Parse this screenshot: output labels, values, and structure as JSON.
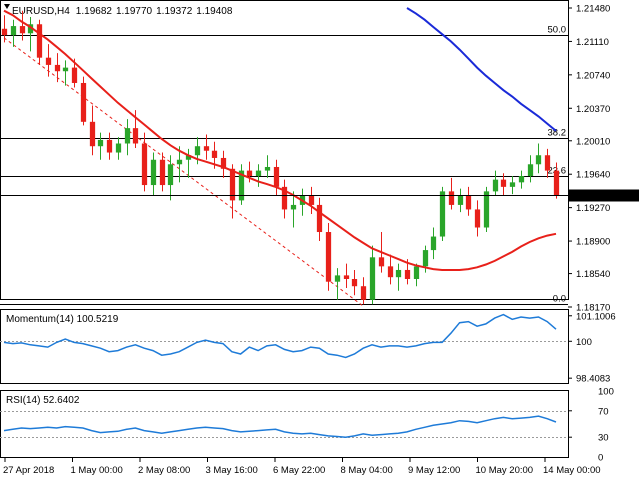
{
  "chart_data": [
    {
      "type": "candlestick",
      "symbol": "EURUSD,H4",
      "ohlc_header": [
        "1.19682",
        "1.19770",
        "1.19372",
        "1.19408"
      ],
      "current_price_label": "1.19408",
      "current_price": 1.19408,
      "ylim": [
        1.1817,
        1.2148
      ],
      "y_ticks": [
        "1.21480",
        "1.21110",
        "1.20740",
        "1.20370",
        "1.20010",
        "1.19640",
        "1.19270",
        "1.18900",
        "1.18540",
        "1.18170"
      ],
      "x_ticks": [
        "27 Apr 2018",
        "1 May 00:00",
        "2 May 08:00",
        "3 May 16:00",
        "6 May 22:00",
        "8 May 04:00",
        "9 May 12:00",
        "10 May 20:00",
        "14 May 00:00"
      ],
      "fibonacci": [
        {
          "label": "50.0",
          "price": 1.2118
        },
        {
          "label": "38.2",
          "price": 1.2004
        },
        {
          "label": "23.6",
          "price": 1.1962
        },
        {
          "label": "0.0",
          "price": 1.182
        }
      ],
      "candles": [
        [
          1.2125,
          1.214,
          1.211,
          1.2118
        ],
        [
          1.2118,
          1.2135,
          1.2105,
          1.2128
        ],
        [
          1.2128,
          1.2145,
          1.2112,
          1.212
        ],
        [
          1.212,
          1.2138,
          1.21,
          1.213
        ],
        [
          1.213,
          1.2135,
          1.2085,
          1.2093
        ],
        [
          1.2093,
          1.2108,
          1.2072,
          1.2085
        ],
        [
          1.2085,
          1.2098,
          1.2066,
          1.2078
        ],
        [
          1.2078,
          1.209,
          1.2062,
          1.2082
        ],
        [
          1.2082,
          1.2092,
          1.206,
          1.2065
        ],
        [
          1.2065,
          1.2072,
          1.2018,
          1.2022
        ],
        [
          1.2022,
          1.204,
          1.1985,
          1.1995
        ],
        [
          1.1995,
          1.201,
          1.198,
          1.2002
        ],
        [
          1.2002,
          1.201,
          1.198,
          1.1988
        ],
        [
          1.1988,
          1.2005,
          1.198,
          1.1998
        ],
        [
          1.1998,
          1.2025,
          1.1985,
          1.2015
        ],
        [
          1.2015,
          1.2035,
          1.1993,
          1.1998
        ],
        [
          1.1998,
          1.201,
          1.1945,
          1.1952
        ],
        [
          1.1952,
          1.1988,
          1.194,
          1.198
        ],
        [
          1.198,
          1.1988,
          1.1945,
          1.1952
        ],
        [
          1.1952,
          1.1985,
          1.1935,
          1.1975
        ],
        [
          1.1975,
          1.1995,
          1.1955,
          1.198
        ],
        [
          1.198,
          1.1992,
          1.196,
          1.1985
        ],
        [
          1.1985,
          1.2005,
          1.1975,
          1.1995
        ],
        [
          1.1995,
          1.2008,
          1.198,
          1.199
        ],
        [
          1.199,
          1.2,
          1.197,
          1.1982
        ],
        [
          1.1982,
          1.199,
          1.196,
          1.197
        ],
        [
          1.197,
          1.1975,
          1.1915,
          1.1935
        ],
        [
          1.1935,
          1.1975,
          1.193,
          1.1968
        ],
        [
          1.1968,
          1.1978,
          1.1955,
          1.1962
        ],
        [
          1.1962,
          1.1975,
          1.195,
          1.1968
        ],
        [
          1.1968,
          1.1985,
          1.196,
          1.1972
        ],
        [
          1.1972,
          1.198,
          1.194,
          1.195
        ],
        [
          1.195,
          1.1958,
          1.1915,
          1.1925
        ],
        [
          1.1925,
          1.1945,
          1.1905,
          1.193
        ],
        [
          1.193,
          1.1948,
          1.1918,
          1.194
        ],
        [
          1.194,
          1.195,
          1.192,
          1.193
        ],
        [
          1.193,
          1.1938,
          1.189,
          1.19
        ],
        [
          1.19,
          1.191,
          1.1835,
          1.1845
        ],
        [
          1.1845,
          1.186,
          1.1825,
          1.1852
        ],
        [
          1.1852,
          1.1865,
          1.1838,
          1.1848
        ],
        [
          1.1848,
          1.1858,
          1.183,
          1.184
        ],
        [
          1.184,
          1.185,
          1.182,
          1.1825
        ],
        [
          1.1825,
          1.1885,
          1.182,
          1.1872
        ],
        [
          1.1872,
          1.19,
          1.1855,
          1.1862
        ],
        [
          1.1862,
          1.1875,
          1.1842,
          1.185
        ],
        [
          1.185,
          1.1865,
          1.1835,
          1.1858
        ],
        [
          1.1858,
          1.187,
          1.1842,
          1.1848
        ],
        [
          1.1848,
          1.1865,
          1.184,
          1.1862
        ],
        [
          1.1862,
          1.1885,
          1.1855,
          1.188
        ],
        [
          1.188,
          1.1905,
          1.187,
          1.1895
        ],
        [
          1.1895,
          1.195,
          1.189,
          1.1945
        ],
        [
          1.1945,
          1.196,
          1.1925,
          1.193
        ],
        [
          1.193,
          1.1948,
          1.1922,
          1.194
        ],
        [
          1.194,
          1.195,
          1.1918,
          1.1925
        ],
        [
          1.1925,
          1.1935,
          1.1895,
          1.1905
        ],
        [
          1.1905,
          1.195,
          1.19,
          1.1945
        ],
        [
          1.1945,
          1.1968,
          1.194,
          1.1958
        ],
        [
          1.1958,
          1.1965,
          1.194,
          1.195
        ],
        [
          1.195,
          1.1962,
          1.1942,
          1.1955
        ],
        [
          1.1955,
          1.1968,
          1.1948,
          1.1962
        ],
        [
          1.1962,
          1.1985,
          1.1955,
          1.1975
        ],
        [
          1.1975,
          1.1998,
          1.1965,
          1.1985
        ],
        [
          1.1985,
          1.1992,
          1.196,
          1.1968
        ],
        [
          1.1968,
          1.1977,
          1.1937,
          1.1941
        ]
      ],
      "series": [
        {
          "name": "",
          "color": "#e8201a",
          "values": [
            1.2145,
            1.214,
            1.2133,
            1.2127,
            1.212,
            1.2113,
            1.2105,
            1.2097,
            1.2088,
            1.2079,
            1.207,
            1.2061,
            1.2052,
            1.2043,
            1.2035,
            1.2027,
            1.2019,
            1.2011,
            1.2003,
            1.1996,
            1.199,
            1.1985,
            1.1981,
            1.1978,
            1.1975,
            1.1972,
            1.1968,
            1.1964,
            1.196,
            1.1956,
            1.1953,
            1.195,
            1.1946,
            1.1941,
            1.1935,
            1.1929,
            1.1922,
            1.1915,
            1.1908,
            1.1901,
            1.1894,
            1.1888,
            1.1882,
            1.1878,
            1.1874,
            1.187,
            1.1866,
            1.1863,
            1.1861,
            1.1859,
            1.1858,
            1.1858,
            1.1858,
            1.1859,
            1.1861,
            1.1864,
            1.1868,
            1.1873,
            1.1878,
            1.1884,
            1.1889,
            1.1893,
            1.1896,
            1.1898
          ]
        },
        {
          "name": "",
          "color": "#1a2ad8",
          "values": [
            null,
            null,
            null,
            null,
            null,
            null,
            null,
            null,
            null,
            null,
            null,
            null,
            null,
            null,
            null,
            null,
            null,
            null,
            null,
            null,
            null,
            null,
            null,
            null,
            null,
            null,
            null,
            null,
            null,
            null,
            null,
            null,
            null,
            null,
            null,
            null,
            null,
            null,
            null,
            null,
            null,
            null,
            null,
            null,
            null,
            null,
            1.2148,
            1.2142,
            1.2135,
            1.2127,
            1.2119,
            1.2111,
            1.2102,
            1.2092,
            1.2082,
            1.2073,
            1.2065,
            1.2057,
            1.205,
            1.2042,
            1.2035,
            1.2028,
            1.202,
            1.2012
          ]
        }
      ],
      "trendline": {
        "from": [
          1.2115,
          1.1818
        ]
      }
    },
    {
      "type": "line",
      "title": "Momentum(14) 100.5219",
      "ylim": [
        98.2,
        101.35
      ],
      "y_ticks": [
        "101.1006",
        "100",
        "98.4083"
      ],
      "reference_level": 100,
      "color": "#1e7bd8",
      "values": [
        99.95,
        99.9,
        99.93,
        99.85,
        99.8,
        99.75,
        99.95,
        100.1,
        99.95,
        99.9,
        99.8,
        99.7,
        99.55,
        99.6,
        99.75,
        99.85,
        99.7,
        99.6,
        99.4,
        99.45,
        99.55,
        99.75,
        99.95,
        100.05,
        99.95,
        99.9,
        99.55,
        99.45,
        99.75,
        99.6,
        99.8,
        99.85,
        99.65,
        99.55,
        99.6,
        99.75,
        99.7,
        99.45,
        99.4,
        99.3,
        99.45,
        99.7,
        99.85,
        99.75,
        99.8,
        99.8,
        99.75,
        99.8,
        99.9,
        99.95,
        99.95,
        100.35,
        100.8,
        100.85,
        100.65,
        100.75,
        101.0,
        101.15,
        100.95,
        101.05,
        101.0,
        101.05,
        100.85,
        100.52
      ]
    },
    {
      "type": "line",
      "title": "RSI(14) 52.6402",
      "ylim": [
        0,
        100
      ],
      "y_ticks": [
        "70",
        "30"
      ],
      "scale_labels": [
        "100",
        "0"
      ],
      "reference_levels": [
        70,
        30
      ],
      "color": "#1e7bd8",
      "values": [
        40,
        42,
        44,
        43,
        44,
        45,
        44,
        46,
        45,
        44,
        40,
        37,
        38,
        39,
        42,
        44,
        40,
        38,
        36,
        38,
        40,
        42,
        44,
        45,
        44,
        43,
        40,
        38,
        39,
        40,
        41,
        42,
        38,
        36,
        35,
        36,
        34,
        32,
        31,
        30,
        32,
        35,
        33,
        34,
        35,
        36,
        38,
        42,
        45,
        48,
        50,
        52,
        55,
        54,
        52,
        55,
        58,
        60,
        58,
        59,
        60,
        62,
        58,
        53
      ]
    }
  ]
}
